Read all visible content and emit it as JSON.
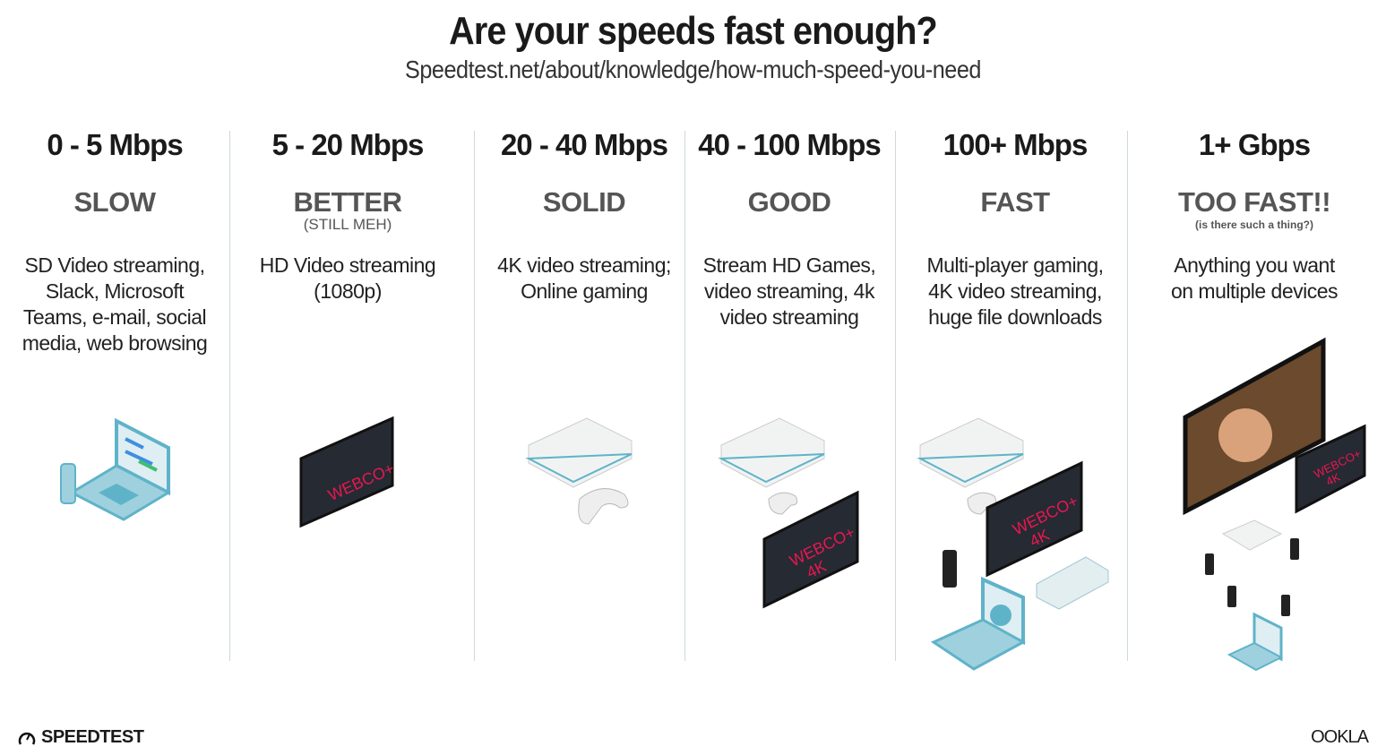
{
  "header": {
    "title": "Are your speeds fast enough?",
    "subtitle": "Speedtest.net/about/knowledge/how-much-speed-you-need"
  },
  "tiers": [
    {
      "speed": "0 - 5 Mbps",
      "label": "SLOW",
      "sublabel": "",
      "desc": [
        "SD Video streaming,",
        "Slack, Microsoft",
        "Teams, e-mail, social",
        "media, web browsing"
      ]
    },
    {
      "speed": "5 - 20 Mbps",
      "label": "BETTER",
      "sublabel": "(STILL MEH)",
      "desc": [
        "HD Video streaming",
        "(1080p)"
      ]
    },
    {
      "speed": "20 - 40 Mbps",
      "label": "SOLID",
      "sublabel": "",
      "desc": [
        "4K video streaming;",
        "Online gaming"
      ]
    },
    {
      "speed": "40 - 100 Mbps",
      "label": "GOOD",
      "sublabel": "",
      "desc": [
        "Stream HD Games,",
        "video streaming, 4k",
        "video streaming"
      ]
    },
    {
      "speed": "100+ Mbps",
      "label": "FAST",
      "sublabel": "",
      "desc": [
        "Multi-player gaming,",
        "4K video streaming,",
        "huge file downloads"
      ]
    },
    {
      "speed": "1+ Gbps",
      "label": "TOO FAST!!",
      "sublabel": "(is there such a thing?)",
      "desc": [
        "Anything you want",
        "on multiple devices"
      ]
    }
  ],
  "tv_brand": "WEBCO+",
  "tv_4k": "4K",
  "icons": [
    "laptop-icon",
    "phone-icon",
    "tv-icon",
    "game-console-icon",
    "gamepad-icon",
    "speedtest-gauge-icon"
  ],
  "colors": {
    "tv_text": "#e8174f",
    "teal": "#5fb3c9",
    "divider": "#cfd8dc"
  },
  "footer": {
    "left": "SPEEDTEST",
    "right": "OOKLA"
  }
}
